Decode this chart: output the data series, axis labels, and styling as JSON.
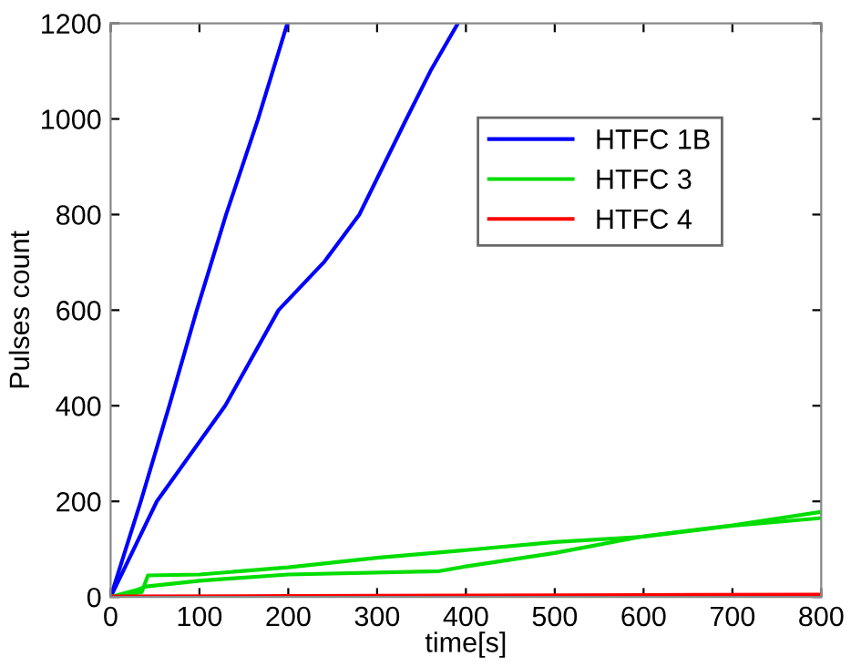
{
  "chart_data": {
    "type": "line",
    "xlabel": "time[s]",
    "ylabel": "Pulses count",
    "xlim": [
      0,
      800
    ],
    "ylim": [
      0,
      1200
    ],
    "xticks": [
      0,
      100,
      200,
      300,
      400,
      500,
      600,
      700,
      800
    ],
    "yticks": [
      0,
      200,
      400,
      600,
      800,
      1000,
      1200
    ],
    "grid": false,
    "legend": "top right",
    "series": [
      {
        "name": "HTFC 1B",
        "color": "#0000ff",
        "x": [
          0,
          34,
          66,
          97,
          130,
          166,
          199
        ],
        "values": [
          0,
          200,
          400,
          600,
          800,
          1000,
          1200
        ]
      },
      {
        "color": "#0000ff",
        "x": [
          0,
          52,
          129,
          189,
          240,
          280,
          333,
          360,
          391
        ],
        "values": [
          0,
          200,
          400,
          600,
          700,
          800,
          1000,
          1100,
          1200
        ]
      },
      {
        "name": "HTFC 3",
        "color": "#00dd00",
        "x": [
          0,
          35,
          42,
          100,
          200,
          300,
          400,
          500,
          600,
          700,
          800
        ],
        "values": [
          0,
          10,
          45,
          47,
          62,
          82,
          98,
          115,
          126,
          149,
          165
        ]
      },
      {
        "color": "#00dd00",
        "x": [
          0,
          30,
          40,
          100,
          200,
          370,
          400,
          500,
          600,
          700,
          800
        ],
        "values": [
          0,
          15,
          22,
          34,
          47,
          54,
          64,
          92,
          127,
          150,
          178
        ]
      },
      {
        "name": "HTFC 4",
        "color": "#ff0000",
        "x": [
          0,
          200,
          400,
          600,
          800
        ],
        "values": [
          1,
          2,
          3,
          4,
          5
        ]
      }
    ]
  }
}
